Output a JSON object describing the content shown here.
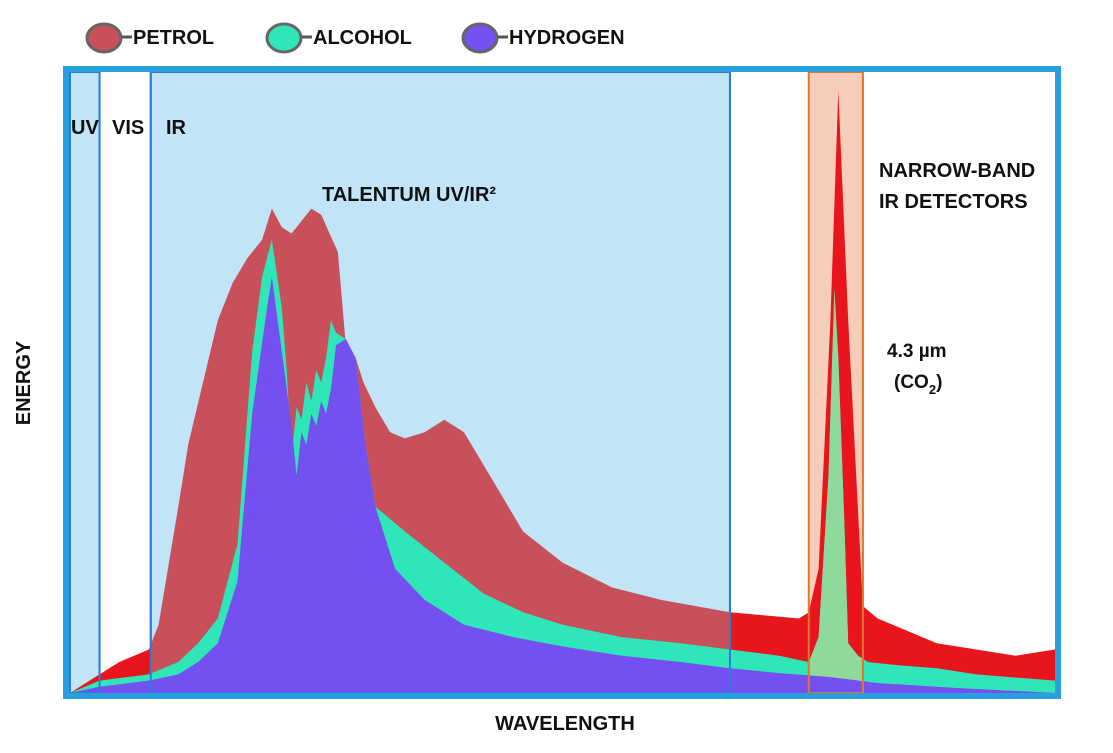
{
  "chart_data": {
    "type": "area",
    "title": "",
    "xlabel": "WAVELENGTH",
    "ylabel": "ENERGY",
    "xlim": [
      0,
      100
    ],
    "ylim": [
      0,
      100
    ],
    "grid": false,
    "legend_position": "top-left",
    "legend": [
      {
        "name": "PETROL",
        "color": "#c8505a"
      },
      {
        "name": "ALCOHOL",
        "color": "#2ee6b8"
      },
      {
        "name": "HYDROGEN",
        "color": "#7450f0"
      }
    ],
    "bands": [
      {
        "label": "UV",
        "from": 0,
        "to": 3
      },
      {
        "label": "VIS",
        "from": 3,
        "to": 8.2
      },
      {
        "label": "IR",
        "from": 8.2,
        "to": 67
      },
      {
        "label": "TALENTUM UV/IR²",
        "from": 8.2,
        "to": 67
      },
      {
        "label": "NARROW-BAND IR DETECTORS",
        "from": 75,
        "to": 80.5
      }
    ],
    "annotation": {
      "line1": "4.3 µm",
      "co_text": "(CO",
      "sub": "2",
      "close": ")"
    },
    "series": [
      {
        "name": "PETROL",
        "color": "#c8505a",
        "outside_color": "#e8161c",
        "x": [
          0,
          3,
          5,
          8,
          9,
          11,
          12,
          13.5,
          15,
          16.5,
          18,
          19.5,
          20.5,
          21.5,
          22.5,
          23.5,
          24.5,
          25.5,
          27.2,
          28,
          29,
          29.8,
          31,
          32.5,
          34,
          36,
          38,
          40,
          43,
          46,
          50,
          55,
          60,
          67,
          74,
          75,
          76,
          77.2,
          78,
          79,
          80.5,
          82,
          85,
          88,
          92,
          96,
          100
        ],
        "y": [
          0,
          3,
          5,
          7,
          11,
          30,
          40,
          50,
          60,
          66,
          70,
          73,
          78,
          75,
          74,
          76,
          78,
          77,
          71,
          56,
          54,
          50,
          46,
          42,
          41,
          42,
          44,
          42,
          34,
          26,
          21,
          17,
          15,
          13,
          12,
          13,
          20,
          60,
          97,
          60,
          14,
          12,
          10,
          8,
          7,
          6,
          7
        ]
      },
      {
        "name": "ALCOHOL",
        "color": "#2ee6b8",
        "x": [
          0,
          3,
          8,
          11,
          13,
          15,
          17,
          18.5,
          19.5,
          20.5,
          21.5,
          22,
          22.5,
          23,
          23.5,
          24,
          24.5,
          25,
          25.5,
          26,
          26.5,
          27,
          28,
          29,
          30,
          31,
          34,
          38,
          42,
          46,
          50,
          56,
          62,
          67,
          72,
          75,
          76,
          77,
          77.6,
          78,
          78.6,
          79,
          80,
          81,
          84,
          88,
          92,
          96,
          100
        ],
        "y": [
          0,
          2,
          3,
          5,
          8,
          12,
          24,
          55,
          67,
          73,
          62,
          52,
          38,
          46,
          44,
          50,
          47,
          52,
          50,
          54,
          60,
          58,
          57,
          54,
          40,
          30,
          26,
          21,
          16,
          13,
          11,
          9,
          8,
          7,
          6,
          5,
          9,
          35,
          65,
          54,
          28,
          8,
          6,
          5,
          4.5,
          4,
          3,
          2.5,
          2
        ]
      },
      {
        "name": "HYDROGEN",
        "color": "#7450f0",
        "x": [
          0,
          3,
          8,
          11,
          13,
          15,
          17,
          18.5,
          20,
          20.5,
          21.5,
          22.5,
          23,
          23.5,
          24,
          24.5,
          25,
          25.5,
          26,
          26.5,
          27,
          28,
          29,
          30,
          31,
          33,
          36,
          40,
          45,
          50,
          56,
          62,
          67,
          72,
          77,
          78,
          79,
          82,
          86,
          90,
          95,
          100
        ],
        "y": [
          0,
          1,
          2,
          3,
          5,
          8,
          18,
          45,
          62,
          67,
          55,
          43,
          35,
          42,
          40,
          45,
          43,
          47,
          45,
          49,
          56,
          57,
          54,
          40,
          30,
          20,
          15,
          11,
          9,
          7.5,
          6,
          5,
          4,
          3.2,
          2.6,
          2.4,
          2.2,
          1.6,
          1.2,
          0.8,
          0.4,
          0
        ]
      }
    ]
  }
}
